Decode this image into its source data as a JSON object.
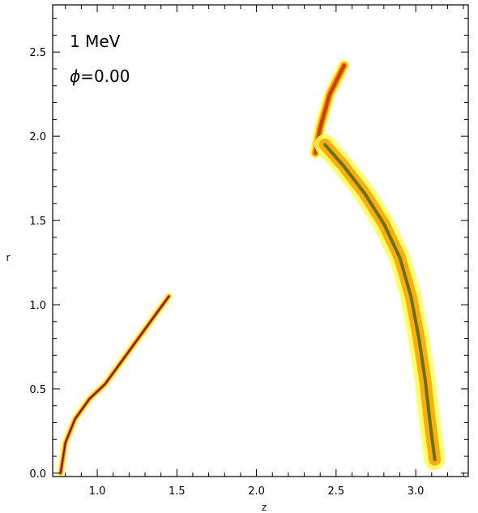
{
  "chart_data": {
    "type": "scatter",
    "xlabel": "z",
    "ylabel": "r",
    "xlim": [
      0.72,
      3.33
    ],
    "ylim": [
      -0.02,
      2.78
    ],
    "xticks": [
      "1.0",
      "1.5",
      "2.0",
      "2.5",
      "3.0"
    ],
    "yticks": [
      "0.0",
      "0.5",
      "1.0",
      "1.5",
      "2.0",
      "2.5"
    ],
    "annotation_energy": "1 MeV",
    "annotation_phase_symbol": "ϕ",
    "annotation_phase_value": "=0.00",
    "grid": false,
    "colors": {
      "low": "#ffff55",
      "mid": "#ffa500",
      "high": "#ff2a00",
      "dark": "#556b00",
      "core": "#3a1a8a"
    },
    "series": [
      {
        "band": "inner",
        "points": [
          [
            0.77,
            0.0
          ],
          [
            0.8,
            0.18
          ],
          [
            0.86,
            0.32
          ],
          [
            0.95,
            0.44
          ],
          [
            1.05,
            0.53
          ],
          [
            1.15,
            0.66
          ],
          [
            1.25,
            0.79
          ],
          [
            1.35,
            0.92
          ],
          [
            1.45,
            1.05
          ]
        ]
      },
      {
        "band": "upper-tip",
        "points": [
          [
            2.37,
            1.9
          ],
          [
            2.4,
            2.05
          ],
          [
            2.46,
            2.25
          ],
          [
            2.55,
            2.42
          ]
        ]
      },
      {
        "band": "outer",
        "points": [
          [
            2.43,
            1.95
          ],
          [
            2.55,
            1.82
          ],
          [
            2.68,
            1.66
          ],
          [
            2.8,
            1.48
          ],
          [
            2.9,
            1.28
          ],
          [
            2.97,
            1.05
          ],
          [
            3.02,
            0.8
          ],
          [
            3.06,
            0.55
          ],
          [
            3.09,
            0.3
          ],
          [
            3.12,
            0.08
          ]
        ]
      }
    ]
  }
}
